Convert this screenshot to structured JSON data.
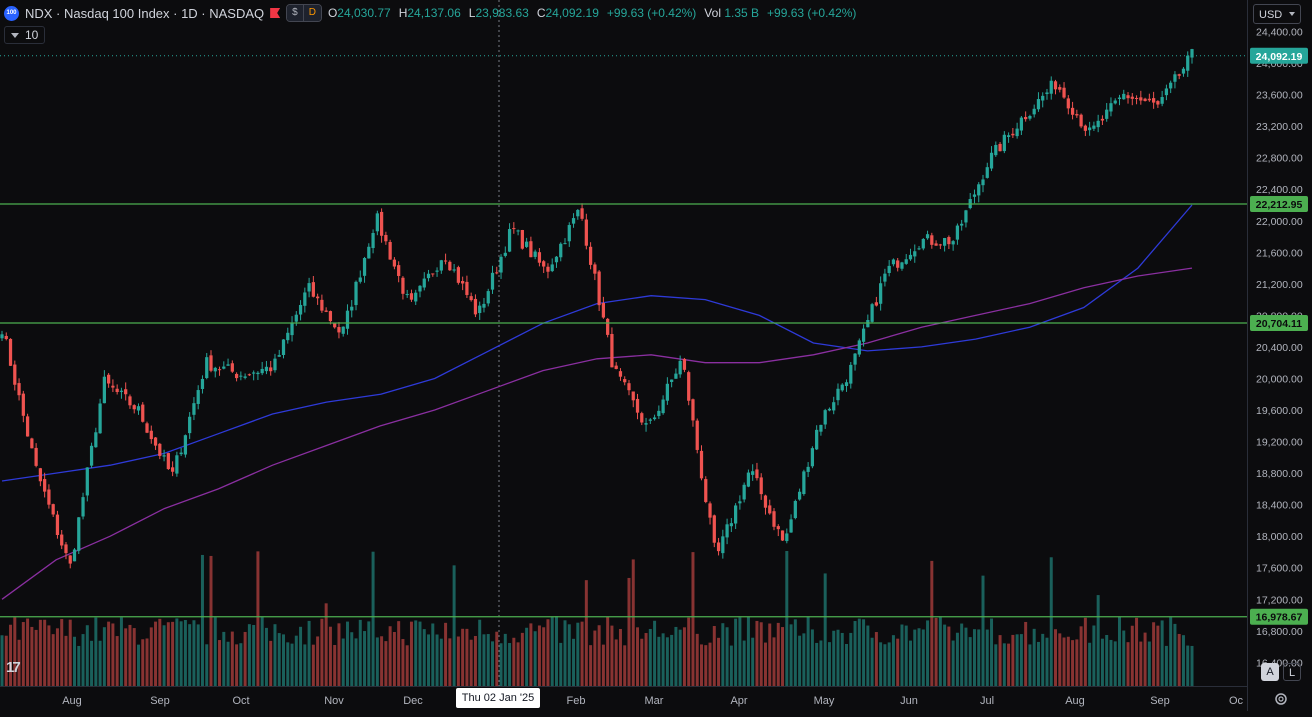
{
  "header": {
    "symbol_icon": "100",
    "title": "NDX · Nasdaq 100 Index · 1D · NASDAQ",
    "flag_icon": "red-flag-icon",
    "currency_pill": "$",
    "dividend_pill": "D",
    "ohlc": [
      {
        "key": "O",
        "value": "24,030.77"
      },
      {
        "key": "H",
        "value": "24,137.06"
      },
      {
        "key": "L",
        "value": "23,983.63"
      },
      {
        "key": "C",
        "value": "24,092.19"
      },
      {
        "key": "",
        "value": "+99.63 (+0.42%)"
      },
      {
        "key": "Vol",
        "value": "1.35 B"
      },
      {
        "key": "",
        "value": "+99.63 (+0.42%)"
      }
    ]
  },
  "ma_toggle": {
    "label": "10"
  },
  "currency_selector": {
    "value": "USD"
  },
  "crosshair_label": "Thu 02 Jan '25",
  "buttons": {
    "auto": "A",
    "log": "L"
  },
  "colors": {
    "up": "#26a69a",
    "down": "#ef5350",
    "level_line": "#4caf50",
    "ma_blue": "#2e3ad8",
    "ma_purple": "#8a2fa0",
    "background": "#0c0c0e"
  },
  "chart_data": {
    "type": "candlestick",
    "title": "NDX · Nasdaq 100 Index · 1D · NASDAQ",
    "x_tick_labels": [
      "Aug",
      "Sep",
      "Oct",
      "Nov",
      "Dec",
      "Feb",
      "Mar",
      "Apr",
      "May",
      "Jun",
      "Jul",
      "Aug",
      "Sep",
      "Oc"
    ],
    "y_tick_labels": [
      "24,400.00",
      "24,000.00",
      "23,600.00",
      "23,200.00",
      "22,800.00",
      "22,400.00",
      "22,000.00",
      "21,600.00",
      "21,200.00",
      "20,800.00",
      "20,400.00",
      "20,000.00",
      "19,600.00",
      "19,200.00",
      "18,800.00",
      "18,400.00",
      "18,000.00",
      "17,600.00",
      "17,200.00",
      "16,800.00",
      "16,400.00"
    ],
    "ylim": [
      16100,
      24800
    ],
    "last_price": {
      "label": "24,092.19",
      "value": 24092.19
    },
    "horizontal_levels": [
      {
        "label": "22,212.95",
        "value": 22212.95
      },
      {
        "label": "20,704.11",
        "value": 20704.11
      },
      {
        "label": "16,978.67",
        "value": 16978.67
      }
    ],
    "price_path": [
      {
        "month": "Jul",
        "value": 20650
      },
      {
        "month": "Aug",
        "value": 18850
      },
      {
        "month": "Aug",
        "value": 17600
      },
      {
        "month": "Aug",
        "value": 19950
      },
      {
        "month": "Sep",
        "value": 19600
      },
      {
        "month": "Sep",
        "value": 18750
      },
      {
        "month": "Oct",
        "value": 20200
      },
      {
        "month": "Oct",
        "value": 20050
      },
      {
        "month": "Nov",
        "value": 20150
      },
      {
        "month": "Nov",
        "value": 21150
      },
      {
        "month": "Dec",
        "value": 20550
      },
      {
        "month": "Dec",
        "value": 22050
      },
      {
        "month": "Dec",
        "value": 20900
      },
      {
        "month": "Jan",
        "value": 21600
      },
      {
        "month": "Jan",
        "value": 20800
      },
      {
        "month": "Jan",
        "value": 21900
      },
      {
        "month": "Feb",
        "value": 21350
      },
      {
        "month": "Feb",
        "value": 22150
      },
      {
        "month": "Mar",
        "value": 20100
      },
      {
        "month": "Mar",
        "value": 19350
      },
      {
        "month": "Mar",
        "value": 20250
      },
      {
        "month": "Apr",
        "value": 17700
      },
      {
        "month": "Apr",
        "value": 18850
      },
      {
        "month": "Apr",
        "value": 17900
      },
      {
        "month": "Apr",
        "value": 19400
      },
      {
        "month": "May",
        "value": 20150
      },
      {
        "month": "May",
        "value": 21350
      },
      {
        "month": "Jun",
        "value": 21750
      },
      {
        "month": "Jun",
        "value": 21750
      },
      {
        "month": "Jul",
        "value": 22750
      },
      {
        "month": "Jul",
        "value": 23300
      },
      {
        "month": "Aug",
        "value": 23750
      },
      {
        "month": "Aug",
        "value": 23100
      },
      {
        "month": "Aug",
        "value": 23600
      },
      {
        "month": "Sep",
        "value": 23450
      },
      {
        "month": "Sep",
        "value": 24092
      }
    ],
    "series": [
      {
        "values": [
          18700,
          18800,
          18900,
          19050,
          19300,
          19550,
          19700,
          19800,
          20000,
          20350,
          20700,
          20950,
          21050,
          21000,
          20800,
          20450,
          20350,
          20400,
          20500,
          20650,
          20900,
          21400,
          22200
        ]
      },
      {
        "values": [
          17200,
          17700,
          18000,
          18350,
          18600,
          18900,
          19150,
          19400,
          19600,
          19850,
          20100,
          20250,
          20300,
          20200,
          20200,
          20300,
          20450,
          20650,
          20800,
          20950,
          21150,
          21300,
          21400
        ]
      }
    ]
  }
}
